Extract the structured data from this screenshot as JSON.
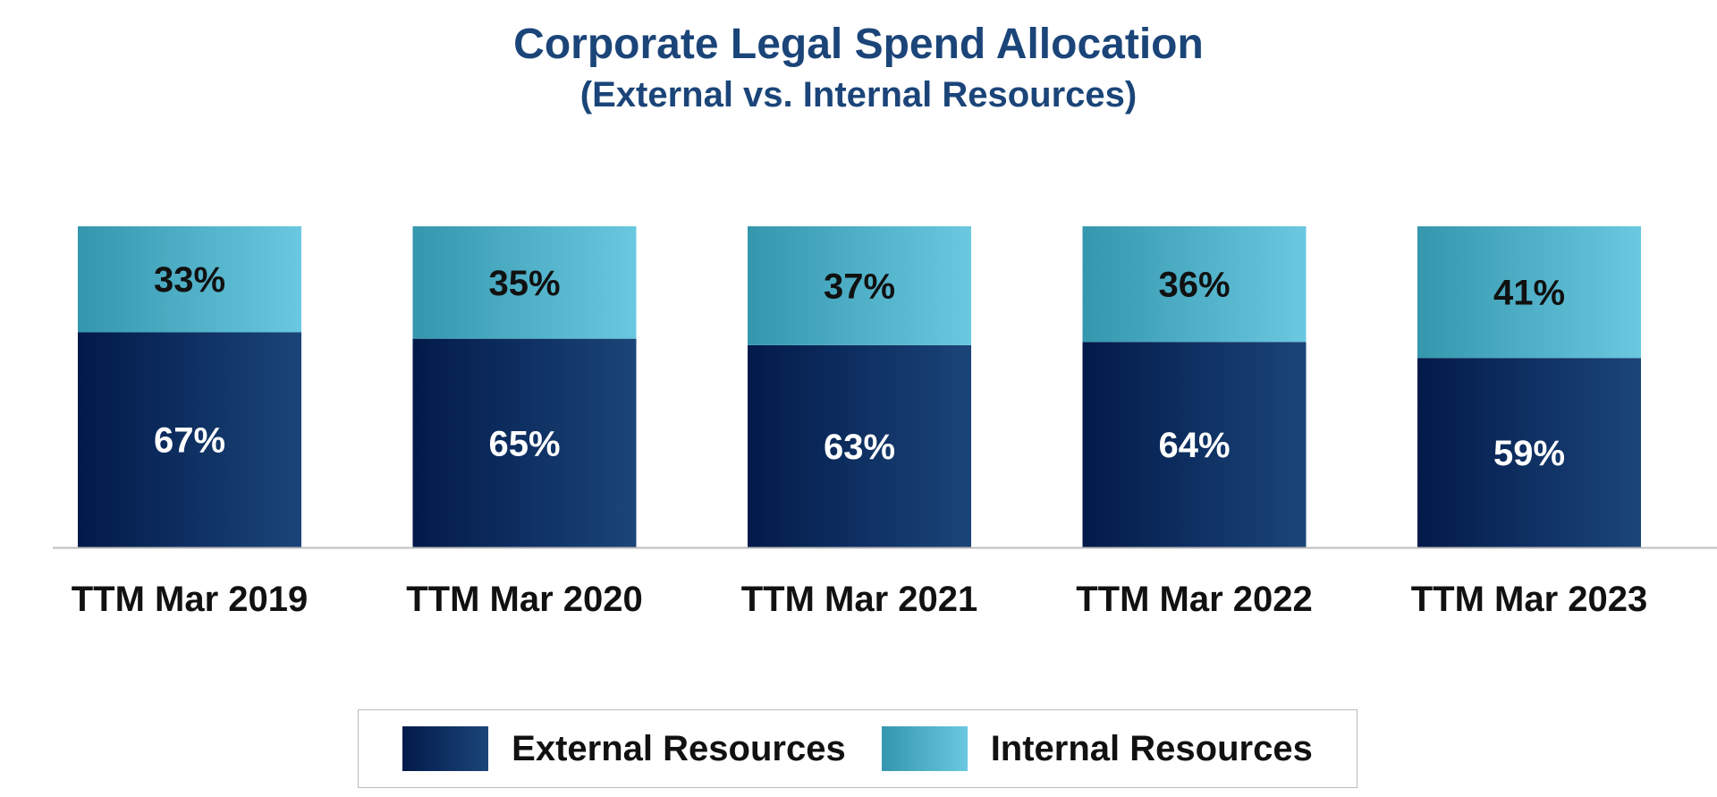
{
  "chart_data": {
    "type": "bar",
    "stacked": true,
    "title": "Corporate Legal Spend Allocation",
    "subtitle": "(External vs. Internal Resources)",
    "categories": [
      "TTM Mar 2019",
      "TTM Mar 2020",
      "TTM Mar 2021",
      "TTM Mar 2022",
      "TTM Mar 2023"
    ],
    "series": [
      {
        "name": "External Resources",
        "values": [
          67,
          65,
          63,
          64,
          59
        ],
        "labels": [
          "67%",
          "65%",
          "63%",
          "64%",
          "59%"
        ],
        "color": "#1b4579",
        "gradient": [
          "#021a4a",
          "#1b4579"
        ],
        "label_color": "#ffffff"
      },
      {
        "name": "Internal Resources",
        "values": [
          33,
          35,
          37,
          36,
          41
        ],
        "labels": [
          "33%",
          "35%",
          "37%",
          "36%",
          "41%"
        ],
        "color": "#6ac8e0",
        "gradient": [
          "#3497ad",
          "#6ac8e0"
        ],
        "label_color": "#111111"
      }
    ],
    "ylim": [
      0,
      100
    ],
    "grid": false,
    "legend_position": "bottom"
  }
}
